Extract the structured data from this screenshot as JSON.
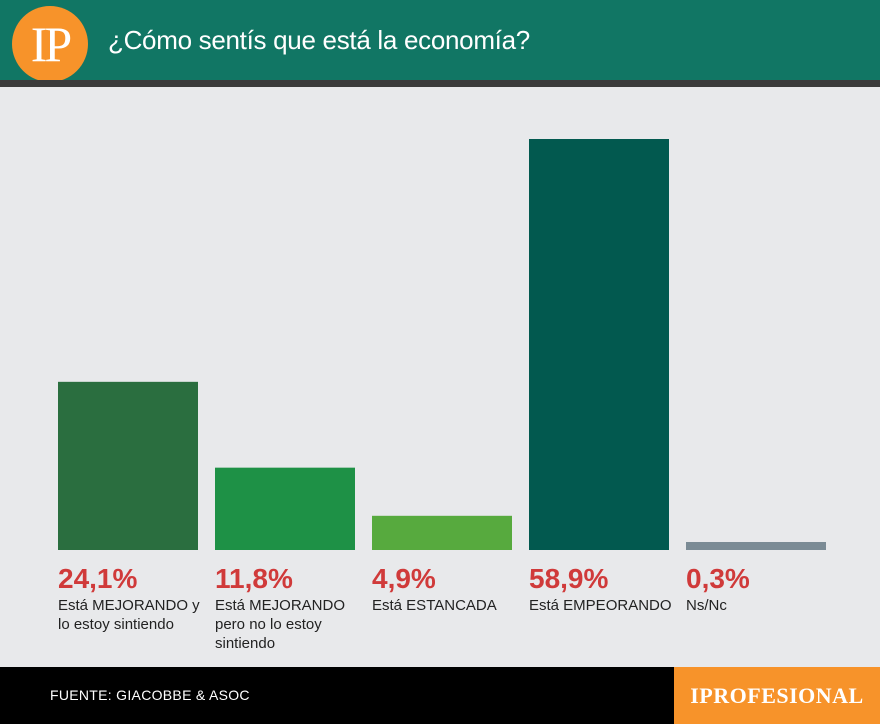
{
  "header": {
    "logo_text": "IP",
    "title": "¿Cómo sentís que está la economía?"
  },
  "chart_data": {
    "type": "bar",
    "title": "¿Cómo sentís que está la economía?",
    "categories": [
      "Está MEJORANDO y lo estoy sintiendo",
      "Está MEJORANDO pero no lo estoy sintiendo",
      "Está ESTANCADA",
      "Está EMPEORANDO",
      "Ns/Nc"
    ],
    "values": [
      24.1,
      11.8,
      4.9,
      58.9,
      0.3
    ],
    "value_labels": [
      "24,1%",
      "11,8%",
      "4,9%",
      "58,9%",
      "0,3%"
    ],
    "colors": [
      "#2a6e3f",
      "#1e9146",
      "#57aa3e",
      "#02594f",
      "#7b8b95"
    ],
    "ylim": [
      0,
      60
    ],
    "grid": false,
    "legend": "none"
  },
  "footer": {
    "source": "FUENTE: GIACOBBE & ASOC",
    "brand": "IPROFESIONAL"
  }
}
